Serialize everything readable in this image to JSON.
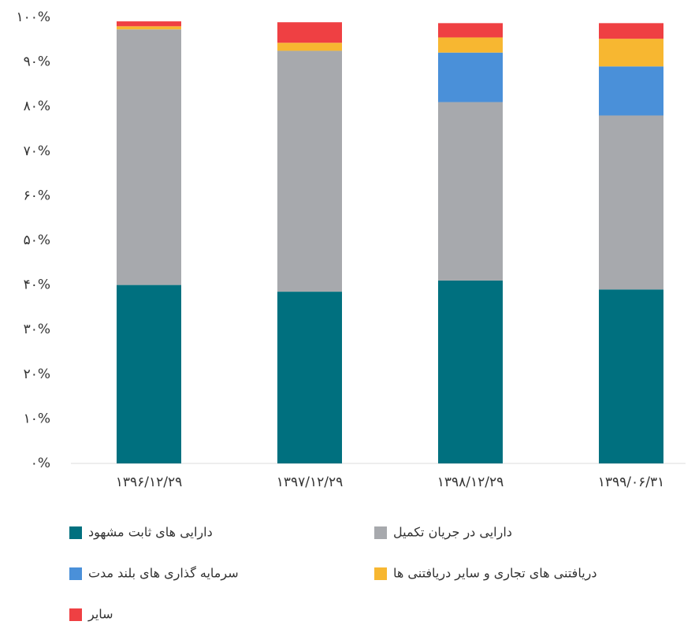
{
  "chart_data": {
    "type": "stacked_bar",
    "categories": [
      "۱۳۹۶/۱۲/۲۹",
      "۱۳۹۷/۱۲/۲۹",
      "۱۳۹۸/۱۲/۲۹",
      "۱۳۹۹/۰۶/۳۱"
    ],
    "series": [
      {
        "name": "دارایی های ثابت مشهود",
        "color": "#00707f",
        "values": [
          40,
          38.5,
          41,
          39
        ]
      },
      {
        "name": "دارایی در جریان تکمیل",
        "color": "#a7a9ad",
        "values": [
          57.3,
          54,
          40,
          39
        ]
      },
      {
        "name": "سرمایه گذاری های بلند مدت",
        "color": "#4a90d9",
        "values": [
          0,
          0,
          11.1,
          11
        ]
      },
      {
        "name": "دریافتنی های تجاری و سایر دریافتنی ها",
        "color": "#f7b731",
        "values": [
          0.7,
          1.8,
          3.4,
          6.2
        ]
      },
      {
        "name": "سایر",
        "color": "#ef4043",
        "values": [
          1.1,
          4.6,
          3.2,
          3.5
        ]
      }
    ],
    "ylim": [
      0,
      100
    ],
    "yticks": [
      {
        "value": 0,
        "label": "۰%"
      },
      {
        "value": 10,
        "label": "۱۰%"
      },
      {
        "value": 20,
        "label": "۲۰%"
      },
      {
        "value": 30,
        "label": "۳۰%"
      },
      {
        "value": 40,
        "label": "۴۰%"
      },
      {
        "value": 50,
        "label": "۵۰%"
      },
      {
        "value": 60,
        "label": "۶۰%"
      },
      {
        "value": 70,
        "label": "۷۰%"
      },
      {
        "value": 80,
        "label": "۸۰%"
      },
      {
        "value": 90,
        "label": "۹۰%"
      },
      {
        "value": 100,
        "label": "۱۰۰%"
      }
    ],
    "grid": false
  }
}
